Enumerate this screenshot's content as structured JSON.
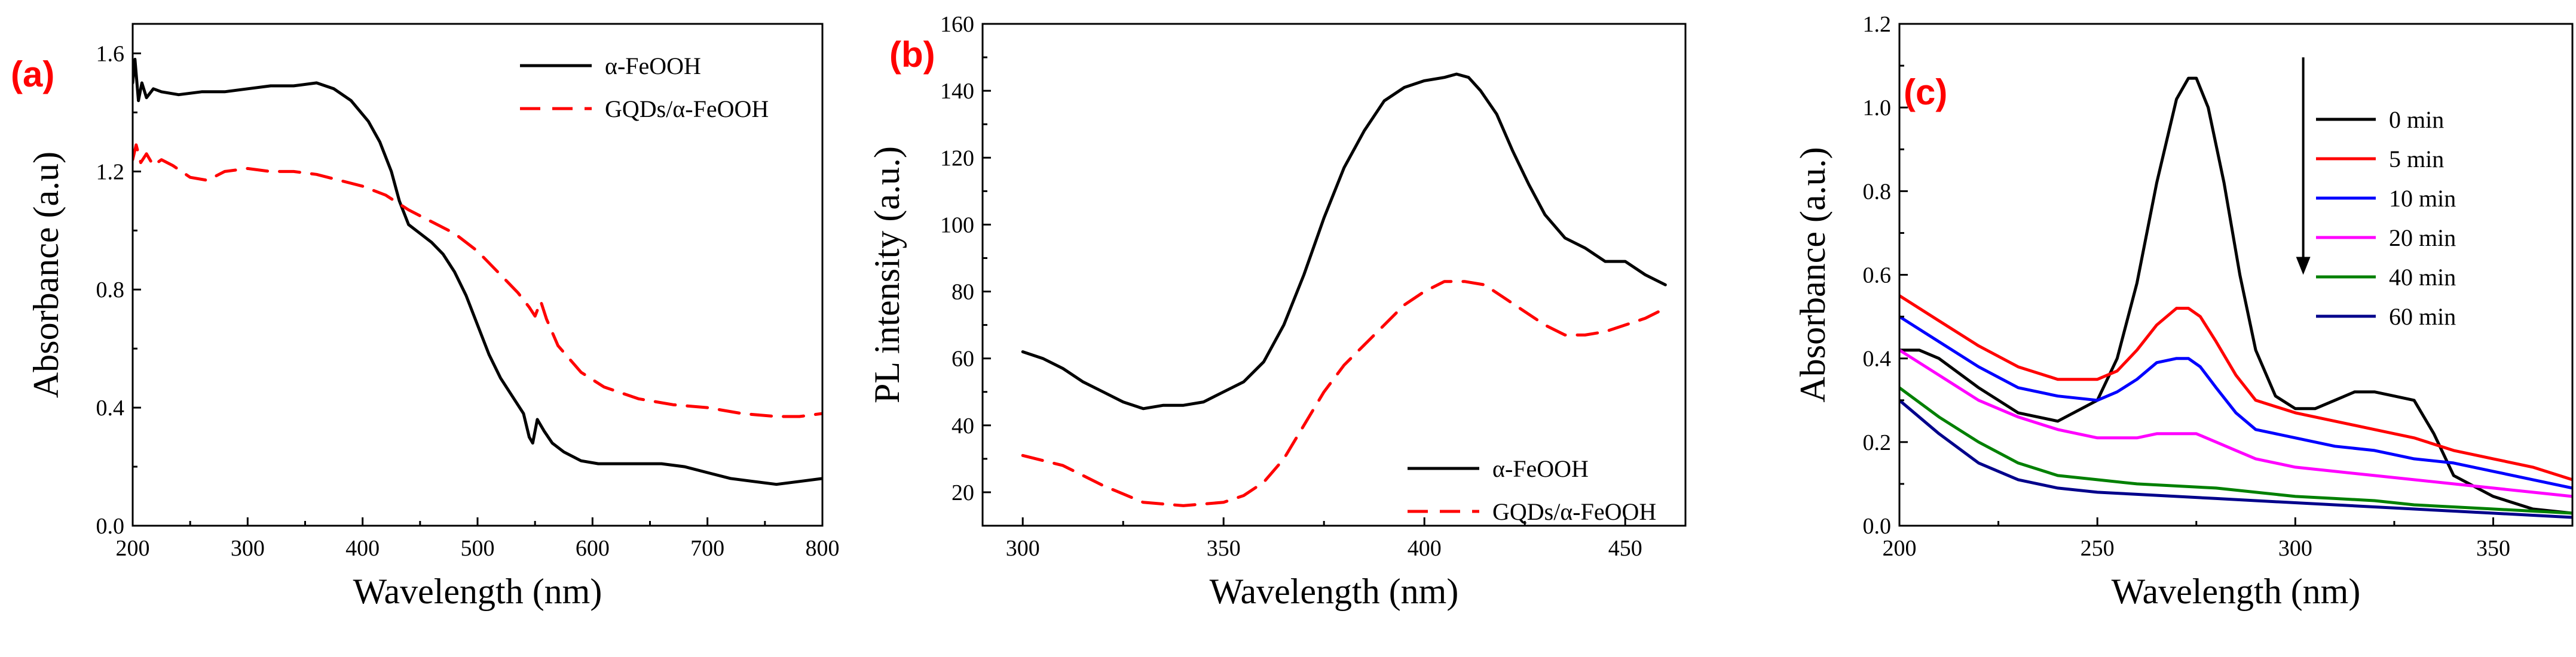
{
  "chart_data": [
    {
      "type": "line",
      "panel_label": "(a)",
      "title": "",
      "xlabel": "Wavelength (nm)",
      "ylabel": "Absorbance (a.u)",
      "xlim": [
        200,
        800
      ],
      "ylim": [
        0.0,
        1.7
      ],
      "xticks": [
        200,
        300,
        400,
        500,
        600,
        700,
        800
      ],
      "yticks": [
        0.0,
        0.4,
        0.8,
        1.2,
        1.6
      ],
      "ytick_labels": [
        "0.0",
        "0.4",
        "0.8",
        "1.2",
        "1.6"
      ],
      "legend_position": "top-right",
      "series": [
        {
          "name": "α-FeOOH",
          "color": "#000000",
          "dash": "solid",
          "x": [
            200,
            202,
            205,
            208,
            212,
            218,
            225,
            240,
            260,
            280,
            300,
            320,
            340,
            360,
            375,
            390,
            405,
            415,
            425,
            432,
            440,
            450,
            460,
            470,
            480,
            490,
            500,
            510,
            520,
            530,
            540,
            545,
            548,
            552,
            558,
            565,
            575,
            590,
            605,
            620,
            640,
            660,
            680,
            700,
            720,
            740,
            760,
            780,
            800
          ],
          "y": [
            1.5,
            1.58,
            1.44,
            1.5,
            1.45,
            1.48,
            1.47,
            1.46,
            1.47,
            1.47,
            1.48,
            1.49,
            1.49,
            1.5,
            1.48,
            1.44,
            1.37,
            1.3,
            1.2,
            1.1,
            1.02,
            0.99,
            0.96,
            0.92,
            0.86,
            0.78,
            0.68,
            0.58,
            0.5,
            0.44,
            0.38,
            0.3,
            0.28,
            0.36,
            0.32,
            0.28,
            0.25,
            0.22,
            0.21,
            0.21,
            0.21,
            0.21,
            0.2,
            0.18,
            0.16,
            0.15,
            0.14,
            0.15,
            0.16
          ]
        },
        {
          "name": "GQDs/α-FeOOH",
          "color": "#ff0000",
          "dash": "dashed",
          "x": [
            200,
            203,
            207,
            212,
            218,
            225,
            235,
            250,
            265,
            280,
            300,
            320,
            340,
            360,
            380,
            400,
            420,
            440,
            460,
            480,
            500,
            520,
            535,
            545,
            550,
            555,
            560,
            570,
            590,
            610,
            640,
            670,
            700,
            730,
            760,
            780,
            800
          ],
          "y": [
            1.24,
            1.29,
            1.23,
            1.26,
            1.22,
            1.24,
            1.22,
            1.18,
            1.17,
            1.2,
            1.21,
            1.2,
            1.2,
            1.19,
            1.17,
            1.15,
            1.12,
            1.07,
            1.03,
            0.99,
            0.93,
            0.85,
            0.79,
            0.74,
            0.71,
            0.76,
            0.7,
            0.61,
            0.52,
            0.47,
            0.43,
            0.41,
            0.4,
            0.38,
            0.37,
            0.37,
            0.38
          ]
        }
      ]
    },
    {
      "type": "line",
      "panel_label": "(b)",
      "title": "",
      "xlabel": "Wavelength (nm)",
      "ylabel": "PL intensity (a.u.)",
      "xlim": [
        290,
        465
      ],
      "ylim": [
        10,
        160
      ],
      "xticks": [
        300,
        350,
        400,
        450
      ],
      "yticks": [
        20,
        40,
        60,
        80,
        100,
        120,
        140,
        160
      ],
      "ytick_labels": [
        "20",
        "40",
        "60",
        "80",
        "100",
        "120",
        "140",
        "160"
      ],
      "legend_position": "bottom-right",
      "series": [
        {
          "name": "α-FeOOH",
          "color": "#000000",
          "dash": "solid",
          "x": [
            300,
            305,
            310,
            315,
            320,
            325,
            330,
            335,
            340,
            345,
            350,
            355,
            360,
            365,
            370,
            375,
            380,
            385,
            390,
            395,
            400,
            405,
            408,
            411,
            414,
            418,
            422,
            426,
            430,
            435,
            440,
            445,
            450,
            455,
            460
          ],
          "y": [
            62,
            60,
            57,
            53,
            50,
            47,
            45,
            46,
            46,
            47,
            50,
            53,
            59,
            70,
            85,
            102,
            117,
            128,
            137,
            141,
            143,
            144,
            145,
            144,
            140,
            133,
            122,
            112,
            103,
            96,
            93,
            89,
            89,
            85,
            82
          ]
        },
        {
          "name": "GQDs/α-FeOOH",
          "color": "#ff0000",
          "dash": "dashed",
          "x": [
            300,
            310,
            320,
            330,
            340,
            350,
            355,
            360,
            365,
            370,
            375,
            380,
            385,
            390,
            395,
            400,
            405,
            410,
            415,
            420,
            425,
            430,
            435,
            440,
            445,
            450,
            455,
            460
          ],
          "y": [
            31,
            28,
            22,
            17,
            16,
            17,
            19,
            23,
            30,
            40,
            50,
            58,
            64,
            70,
            76,
            80,
            83,
            83,
            82,
            78,
            74,
            70,
            67,
            67,
            68,
            70,
            72,
            75
          ]
        }
      ]
    },
    {
      "type": "line",
      "panel_label": "(c)",
      "title": "",
      "xlabel": "Wavelength (nm)",
      "ylabel": "Absorbance (a.u.)",
      "xlim": [
        200,
        370
      ],
      "ylim": [
        0.0,
        1.2
      ],
      "xticks": [
        200,
        250,
        300,
        350
      ],
      "yticks": [
        0.0,
        0.2,
        0.4,
        0.6,
        0.8,
        1.0,
        1.2
      ],
      "ytick_labels": [
        "0.0",
        "0.2",
        "0.4",
        "0.6",
        "0.8",
        "1.0",
        "1.2"
      ],
      "legend_position": "top-right",
      "annotation": "downward arrow indicating decrease with time",
      "series": [
        {
          "name": "0 min",
          "color": "#000000",
          "dash": "solid",
          "x": [
            200,
            205,
            210,
            220,
            230,
            240,
            250,
            255,
            260,
            265,
            270,
            273,
            275,
            278,
            282,
            286,
            290,
            295,
            300,
            305,
            310,
            315,
            320,
            325,
            330,
            335,
            340,
            350,
            360,
            370
          ],
          "y": [
            0.42,
            0.42,
            0.4,
            0.33,
            0.27,
            0.25,
            0.3,
            0.4,
            0.58,
            0.82,
            1.02,
            1.07,
            1.07,
            1.0,
            0.82,
            0.6,
            0.42,
            0.31,
            0.28,
            0.28,
            0.3,
            0.32,
            0.32,
            0.31,
            0.3,
            0.22,
            0.12,
            0.07,
            0.04,
            0.03
          ]
        },
        {
          "name": "5 min",
          "color": "#ff0000",
          "dash": "solid",
          "x": [
            200,
            210,
            220,
            230,
            240,
            250,
            255,
            260,
            265,
            270,
            273,
            276,
            280,
            285,
            290,
            300,
            310,
            320,
            330,
            340,
            350,
            360,
            370
          ],
          "y": [
            0.55,
            0.49,
            0.43,
            0.38,
            0.35,
            0.35,
            0.37,
            0.42,
            0.48,
            0.52,
            0.52,
            0.5,
            0.44,
            0.36,
            0.3,
            0.27,
            0.25,
            0.23,
            0.21,
            0.18,
            0.16,
            0.14,
            0.11
          ]
        },
        {
          "name": "10 min",
          "color": "#0000ff",
          "dash": "solid",
          "x": [
            200,
            210,
            220,
            230,
            240,
            250,
            255,
            260,
            265,
            270,
            273,
            276,
            280,
            285,
            290,
            300,
            310,
            320,
            330,
            340,
            350,
            360,
            370
          ],
          "y": [
            0.5,
            0.44,
            0.38,
            0.33,
            0.31,
            0.3,
            0.32,
            0.35,
            0.39,
            0.4,
            0.4,
            0.38,
            0.33,
            0.27,
            0.23,
            0.21,
            0.19,
            0.18,
            0.16,
            0.15,
            0.13,
            0.11,
            0.09
          ]
        },
        {
          "name": "20 min",
          "color": "#ff00ff",
          "dash": "solid",
          "x": [
            200,
            210,
            220,
            230,
            240,
            250,
            260,
            265,
            270,
            275,
            280,
            285,
            290,
            300,
            310,
            320,
            330,
            340,
            350,
            360,
            370
          ],
          "y": [
            0.42,
            0.36,
            0.3,
            0.26,
            0.23,
            0.21,
            0.21,
            0.22,
            0.22,
            0.22,
            0.2,
            0.18,
            0.16,
            0.14,
            0.13,
            0.12,
            0.11,
            0.1,
            0.09,
            0.08,
            0.07
          ]
        },
        {
          "name": "40 min",
          "color": "#008000",
          "dash": "solid",
          "x": [
            200,
            210,
            220,
            230,
            240,
            250,
            260,
            270,
            280,
            290,
            300,
            310,
            320,
            330,
            340,
            350,
            360,
            370
          ],
          "y": [
            0.33,
            0.26,
            0.2,
            0.15,
            0.12,
            0.11,
            0.1,
            0.095,
            0.09,
            0.08,
            0.07,
            0.065,
            0.06,
            0.05,
            0.045,
            0.04,
            0.035,
            0.03
          ]
        },
        {
          "name": "60 min",
          "color": "#00008b",
          "dash": "solid",
          "x": [
            200,
            210,
            220,
            230,
            240,
            250,
            260,
            270,
            280,
            290,
            300,
            310,
            320,
            330,
            340,
            350,
            360,
            370
          ],
          "y": [
            0.3,
            0.22,
            0.15,
            0.11,
            0.09,
            0.08,
            0.075,
            0.07,
            0.065,
            0.06,
            0.055,
            0.05,
            0.045,
            0.04,
            0.035,
            0.03,
            0.025,
            0.02
          ]
        }
      ]
    }
  ]
}
